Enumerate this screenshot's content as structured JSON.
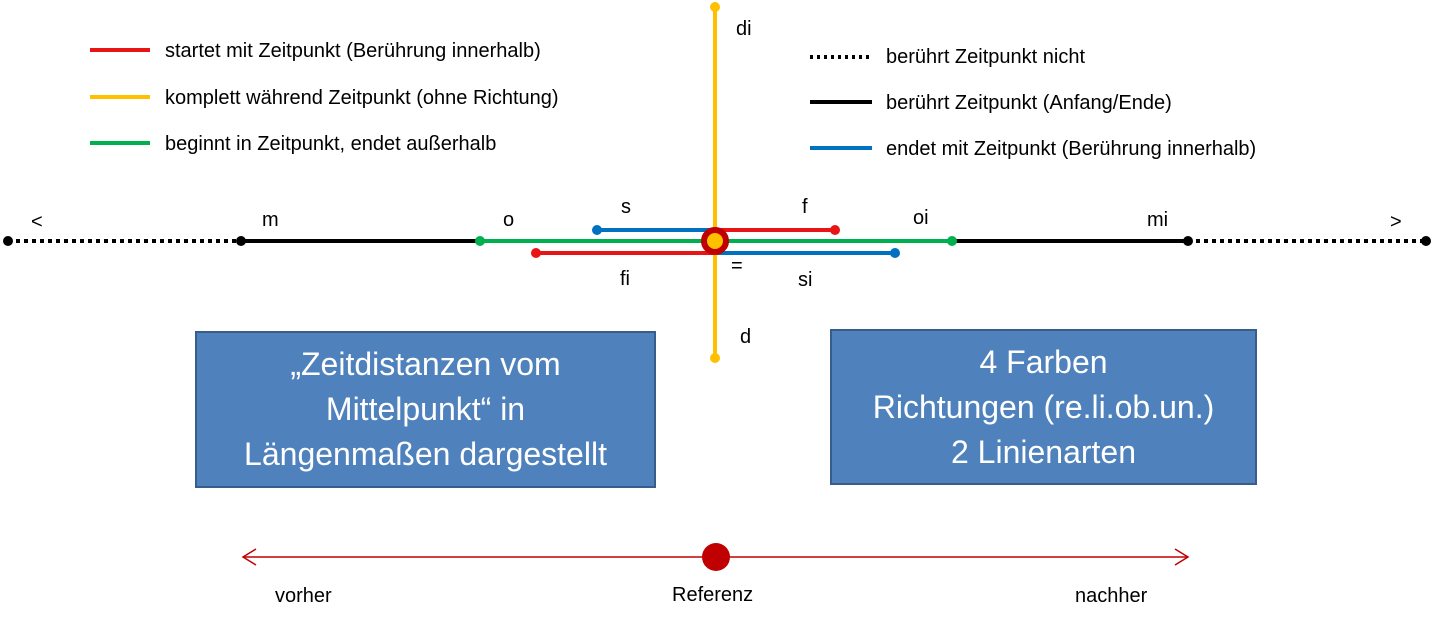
{
  "legend_left": [
    {
      "text": "startet mit Zeitpunkt (Berührung innerhalb)",
      "color": "#e81416"
    },
    {
      "text": "komplett während Zeitpunkt (ohne Richtung)",
      "color": "#ffc000"
    },
    {
      "text": "beginnt in Zeitpunkt, endet außerhalb",
      "color": "#00b050"
    }
  ],
  "legend_right": [
    {
      "text": "berührt Zeitpunkt nicht",
      "style": "dotted",
      "color": "#000000"
    },
    {
      "text": "berührt Zeitpunkt (Anfang/Ende)",
      "style": "solid",
      "color": "#000000"
    },
    {
      "text": "endet mit Zeitpunkt (Berührung innerhalb)",
      "style": "solid",
      "color": "#0070c0"
    }
  ],
  "relations": {
    "before": "<",
    "meets": "m",
    "overlaps": "o",
    "starts": "s",
    "finishes": "f",
    "overlapped_by": "oi",
    "met_by": "mi",
    "after": ">",
    "finished_by": "fi",
    "equals": "=",
    "started_by": "si",
    "contains": "di",
    "during": "d"
  },
  "box_left": {
    "lines": [
      "„Zeitdistanzen vom",
      "Mittelpunkt“ in",
      "Längenmaßen dargestellt"
    ]
  },
  "box_right": {
    "lines": [
      "4 Farben",
      "Richtungen (re.li.ob.un.)",
      "2 Linienarten"
    ]
  },
  "timeline": {
    "before": "vorher",
    "reference": "Referenz",
    "after": "nachher"
  },
  "colors": {
    "red": "#e81416",
    "yellow": "#ffc000",
    "green": "#00b050",
    "blue": "#0070c0",
    "black": "#000000",
    "center_dark_red": "#c00000",
    "box_fill": "#4f81bd",
    "box_border": "#385d8a",
    "timeline": "#c00000"
  }
}
